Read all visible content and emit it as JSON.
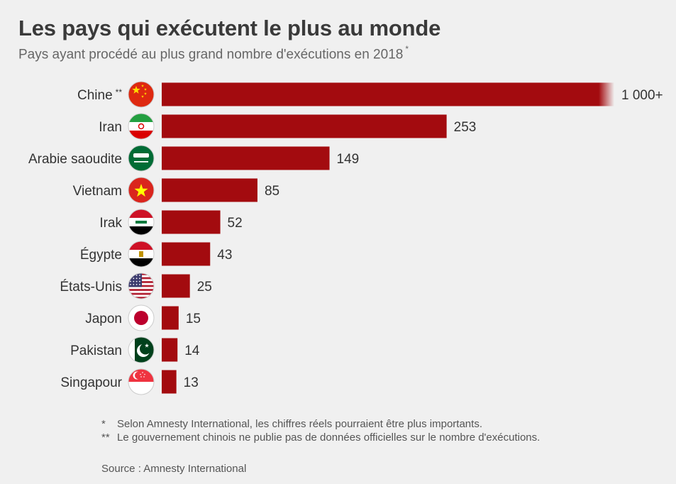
{
  "title": "Les pays qui exécutent le plus au monde",
  "subtitle": "Pays ayant procédé au plus grand nombre d'exécutions en 2018",
  "subtitle_mark": "*",
  "footnotes": [
    {
      "mark": "*",
      "text": "Selon Amnesty International, les chiffres réels pourraient être plus importants."
    },
    {
      "mark": "**",
      "text": "Le gouvernement chinois ne publie pas de données officielles sur le nombre d'exécutions."
    }
  ],
  "source": "Source : Amnesty International",
  "chart_data": {
    "type": "bar",
    "orientation": "horizontal",
    "categories": [
      "Chine",
      "Iran",
      "Arabie saoudite",
      "Vietnam",
      "Irak",
      "Égypte",
      "États-Unis",
      "Japon",
      "Pakistan",
      "Singapour"
    ],
    "category_marks": [
      "**",
      "",
      "",
      "",
      "",
      "",
      "",
      "",
      "",
      ""
    ],
    "values": [
      1000,
      253,
      149,
      85,
      52,
      43,
      25,
      15,
      14,
      13
    ],
    "value_labels": [
      "1 000+",
      "253",
      "149",
      "85",
      "52",
      "43",
      "25",
      "15",
      "14",
      "13"
    ],
    "flag_icons": [
      "china-flag-icon",
      "iran-flag-icon",
      "saudi-arabia-flag-icon",
      "vietnam-flag-icon",
      "iraq-flag-icon",
      "egypt-flag-icon",
      "usa-flag-icon",
      "japan-flag-icon",
      "pakistan-flag-icon",
      "singapore-flag-icon"
    ],
    "bar_color": "#a30b0f",
    "axis_visible": false,
    "grid": false
  }
}
